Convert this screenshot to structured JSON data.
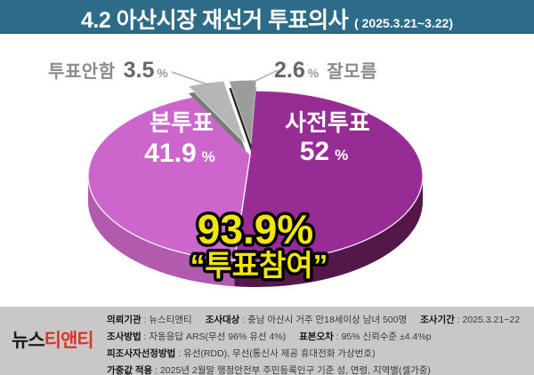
{
  "header": {
    "title": "4.2 아산시장 재선거 투표의사",
    "subtitle": "( 2025.3.21~3.22)"
  },
  "chart_data": {
    "type": "pie",
    "title": "4.2 아산시장 재선거 투표의사",
    "unit": "%",
    "legend_position": "none",
    "start_angle_deg": 0,
    "clockwise": true,
    "slices": [
      {
        "name": "사전투표",
        "value": 52,
        "color": "#982C95",
        "side_color": "#531849",
        "exploded": false,
        "label_inside": true
      },
      {
        "name": "본투표",
        "value": 41.9,
        "color": "#CC66CC",
        "side_color": "#B25AAE",
        "exploded": false,
        "label_inside": true
      },
      {
        "name": "투표안함",
        "value": 3.5,
        "color": "#B6B6B6",
        "side_color": "#7A7A7A",
        "exploded": true,
        "label_inside": false
      },
      {
        "name": "잘모름",
        "value": 2.6,
        "color": "#9C9C9C",
        "side_color": "#1F1F1F",
        "exploded": true,
        "label_inside": false
      }
    ],
    "annotation": {
      "headline": "93.9%",
      "caption": "“투표참여”",
      "color": "#F4E600"
    }
  },
  "footer": {
    "logo_black": "뉴스",
    "logo_red": "티앤티",
    "rows": [
      [
        {
          "k": "의뢰기관",
          "v": "뉴스티앤티"
        },
        {
          "k": "조사대상",
          "v": "충남 아산시 거주 만18세이상 남녀 500명"
        },
        {
          "k": "조사기간",
          "v": "2025.3.21~22"
        }
      ],
      [
        {
          "k": "조사방법",
          "v": "자동응답 ARS(무선 96% 유선 4%)"
        },
        {
          "k": "표본오차",
          "v": "95% 신뢰수준 ±4.4%p"
        }
      ],
      [
        {
          "k": "피조사자선정방법",
          "v": "유선(RDD), 무선(통신사 제공 휴대전화 가상번호)"
        }
      ],
      [
        {
          "k": "가중값 적용",
          "v": "2025년 2월말 행정안전부 주민등록인구 기준 성, 연령, 지역별(셀가중)"
        }
      ]
    ]
  }
}
